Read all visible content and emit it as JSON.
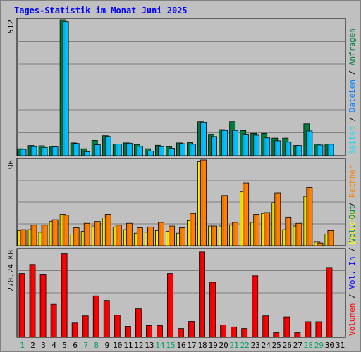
{
  "title": "Tages-Statistik im Monat Juni 2025",
  "colors": {
    "background": "#c0c0c0",
    "title": "#0000ff",
    "grid": "#808080",
    "anfragen": "#008040",
    "dateien": "#00c0ff",
    "seiten": "#00e0ff",
    "besuche": "#ffff00",
    "rechner": "#ff8000",
    "vol_out": "#008040",
    "vol_in": "#0000ff",
    "volumen": "#ff0000",
    "weekend": "#00a060",
    "weekday": "#000000"
  },
  "chart_data": {
    "type": "bar",
    "title": "Tages-Statistik im Monat Juni 2025",
    "categories": [
      "1",
      "2",
      "3",
      "4",
      "5",
      "6",
      "7",
      "8",
      "9",
      "10",
      "11",
      "12",
      "13",
      "14",
      "15",
      "16",
      "17",
      "18",
      "19",
      "20",
      "21",
      "22",
      "23",
      "24",
      "25",
      "26",
      "27",
      "28",
      "29",
      "30",
      "31"
    ],
    "weekend_days": [
      "1",
      "7",
      "8",
      "14",
      "15",
      "21",
      "22",
      "28",
      "29"
    ],
    "panels": [
      {
        "id": "top",
        "ymax_label": "512",
        "ymax": 512,
        "series": [
          {
            "name": "Anfragen",
            "values": [
              26,
              38,
              37,
              36,
              512,
              48,
              26,
              57,
              75,
              44,
              48,
              42,
              26,
              39,
              34,
              48,
              49,
              128,
              78,
              98,
              128,
              95,
              84,
              84,
              66,
              66,
              38,
              120,
              44,
              44,
              0
            ]
          },
          {
            "name": "Dateien",
            "values": [
              24,
              34,
              31,
              33,
              505,
              46,
              15,
              41,
              72,
              44,
              47,
              35,
              17,
              34,
              28,
              45,
              43,
              124,
              72,
              95,
              95,
              78,
              77,
              67,
              56,
              51,
              38,
              93,
              40,
              43,
              0
            ]
          },
          {
            "name": "Seiten",
            "values": [
              0,
              0,
              0,
              0,
              0,
              0,
              0,
              0,
              0,
              0,
              0,
              0,
              0,
              0,
              0,
              0,
              0,
              0,
              0,
              0,
              0,
              0,
              0,
              0,
              0,
              0,
              0,
              0,
              0,
              0,
              0
            ]
          }
        ],
        "legend": [
          "Seiten",
          "Dateien",
          "Anfragen"
        ]
      },
      {
        "id": "middle",
        "ymax_label": "96",
        "ymax": 96,
        "series": [
          {
            "name": "Besuche",
            "values": [
              17,
              18,
              15,
              27,
              35,
              13,
              16,
              22,
              31,
              21,
              18,
              14,
              15,
              17,
              16,
              14,
              28,
              94,
              22,
              22,
              23,
              60,
              26,
              36,
              48,
              18,
              22,
              55,
              4,
              13,
              0
            ]
          },
          {
            "name": "Rechner",
            "values": [
              18,
              23,
              23,
              29,
              34,
              20,
              25,
              27,
              35,
              23,
              25,
              20,
              21,
              26,
              22,
              20,
              36,
              104,
              22,
              56,
              26,
              70,
              35,
              37,
              59,
              32,
              25,
              65,
              3,
              17,
              0
            ]
          }
        ],
        "legend": [
          "Rechner",
          "Besuche"
        ]
      },
      {
        "id": "bottom",
        "ymax_label": "270.24 KB",
        "ymax": 270.24,
        "series": [
          {
            "name": "Volumen",
            "values": [
              197,
              225,
              195,
              102,
              258,
              44,
              66,
              128,
              114,
              68,
              34,
              88,
              36,
              36,
              197,
              27,
              49,
              264,
              170,
              38,
              32,
              27,
              190,
              66,
              14,
              63,
              14,
              48,
              48,
              216,
              0
            ]
          },
          {
            "name": "Vol. In",
            "values": [
              0,
              0,
              0,
              0,
              0,
              0,
              0,
              0,
              0,
              0,
              0,
              0,
              0,
              0,
              0,
              0,
              0,
              0,
              0,
              0,
              0,
              0,
              0,
              0,
              0,
              0,
              0,
              0,
              0,
              0,
              0
            ]
          },
          {
            "name": "Vol. Out",
            "values": [
              0,
              0,
              0,
              0,
              0,
              0,
              0,
              0,
              0,
              0,
              0,
              0,
              0,
              0,
              0,
              0,
              0,
              0,
              0,
              0,
              0,
              0,
              0,
              0,
              0,
              0,
              0,
              0,
              0,
              0,
              0
            ]
          }
        ],
        "legend": [
          "Vol. Out",
          "Vol. In",
          "Volumen"
        ]
      }
    ]
  },
  "legend_texts": {
    "top": [
      {
        "text": "Seiten",
        "color": "#00e0ff"
      },
      {
        "text": " / ",
        "color": "#000000"
      },
      {
        "text": "Dateien",
        "color": "#0080ff"
      },
      {
        "text": " / ",
        "color": "#000000"
      },
      {
        "text": "Anfragen",
        "color": "#008040"
      }
    ],
    "middle": [
      {
        "text": "Besuche",
        "color": "#ffff00"
      },
      {
        "text": " / ",
        "color": "#000000"
      },
      {
        "text": "Rechner",
        "color": "#ff8000"
      }
    ],
    "bottom": [
      {
        "text": "Volumen",
        "color": "#ff0000"
      },
      {
        "text": " / ",
        "color": "#000000"
      },
      {
        "text": "Vol. In",
        "color": "#0000ff"
      },
      {
        "text": " / ",
        "color": "#000000"
      },
      {
        "text": "Vol. Out",
        "color": "#008040"
      }
    ]
  }
}
